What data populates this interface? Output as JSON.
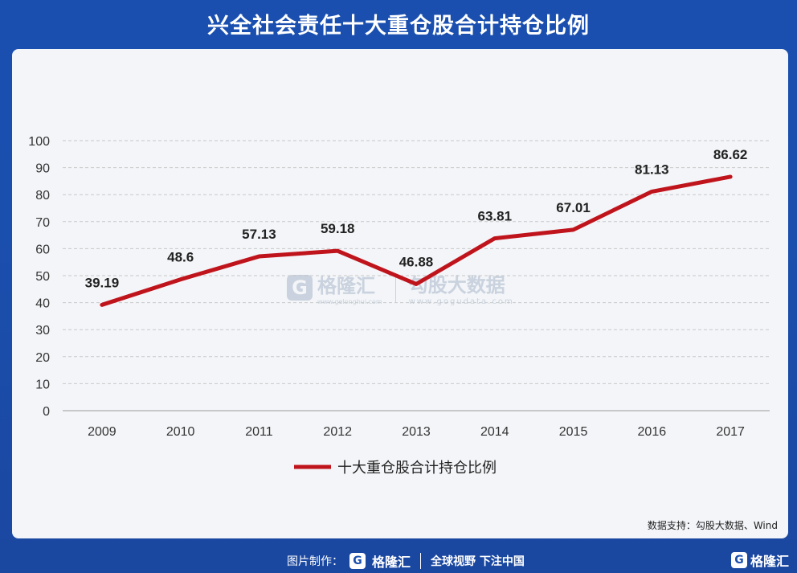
{
  "header": {
    "title": "兴全社会责任十大重仓股合计持仓比例"
  },
  "chart_data": {
    "type": "line",
    "categories": [
      "2009",
      "2010",
      "2011",
      "2012",
      "2013",
      "2014",
      "2015",
      "2016",
      "2017"
    ],
    "series": [
      {
        "name": "十大重仓股合计持仓比例",
        "values": [
          39.19,
          48.6,
          57.13,
          59.18,
          46.88,
          63.81,
          67.01,
          81.13,
          86.62
        ],
        "labels": [
          "39.19",
          "48.6",
          "57.13",
          "59.18",
          "46.88",
          "63.81",
          "67.01",
          "81.13",
          "86.62"
        ],
        "color": "#c0141c"
      }
    ],
    "ylim": [
      0,
      100
    ],
    "yticks": [
      "0",
      "10",
      "20",
      "30",
      "40",
      "50",
      "60",
      "70",
      "80",
      "90",
      "100"
    ],
    "grid": true,
    "legend_position": "bottom-center"
  },
  "source": "数据支持：勾股大数据、Wind",
  "watermark": {
    "logo_char": "G",
    "brand": "格隆汇",
    "brand_url": "www.gelonghui.com",
    "partner": "勾股大数据",
    "partner_url": "www.gogudata.com"
  },
  "footer": {
    "made_by": "图片制作：",
    "logo_char": "G",
    "brand": "格隆汇",
    "slogan": "全球视野 下注中国",
    "right_brand": "格隆汇"
  }
}
